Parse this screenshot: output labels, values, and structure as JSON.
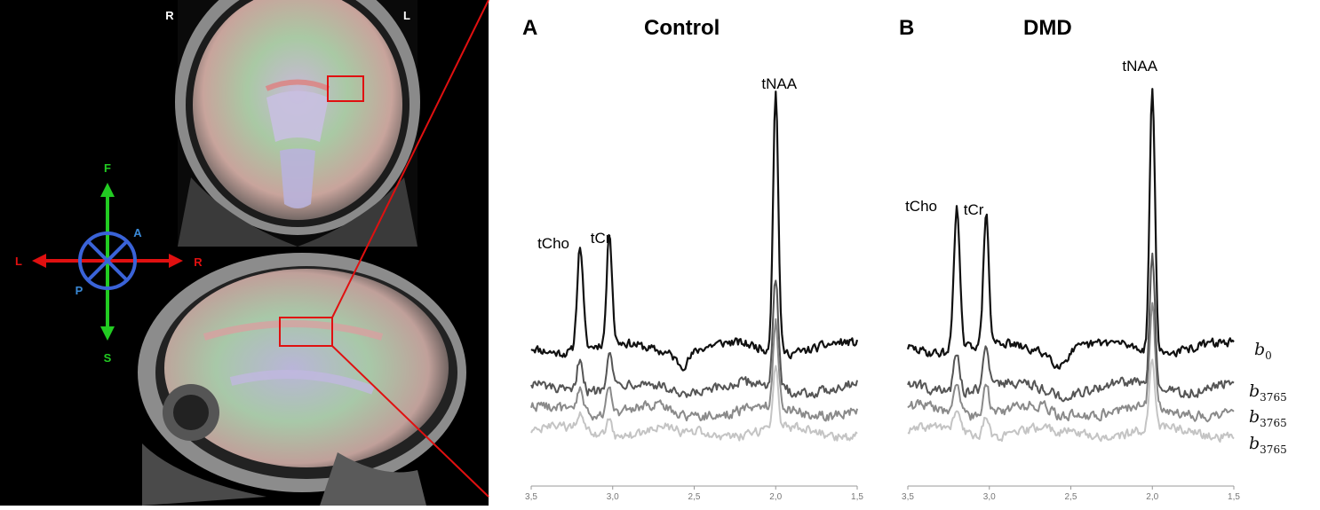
{
  "mri": {
    "coronal": {
      "right_label": "R",
      "left_label": "L"
    },
    "compass": {
      "up": "F",
      "down": "S",
      "left": "L",
      "right": "R",
      "anterior": "A",
      "posterior": "P"
    }
  },
  "panels": [
    {
      "letter": "A",
      "title": "Control"
    },
    {
      "letter": "B",
      "title": "DMD"
    }
  ],
  "chart_data": [
    {
      "type": "line",
      "panel": "A",
      "title": "Control",
      "xlabel": "",
      "ylabel": "",
      "xlim": [
        3.5,
        1.5
      ],
      "x_ticks": [
        "3,5",
        "3,0",
        "2,5",
        "2,0",
        "1,5"
      ],
      "peaks": [
        {
          "label": "tCho",
          "ppm": 3.2
        },
        {
          "label": "tCr",
          "ppm": 3.02
        },
        {
          "label": "tNAA",
          "ppm": 2.0
        }
      ],
      "series": [
        {
          "label_main": "b",
          "label_sub": "0",
          "color": "#111111"
        },
        {
          "label_main": "b",
          "label_sub": "3765",
          "color": "#555555"
        },
        {
          "label_main": "b",
          "label_sub": "3765",
          "color": "#8a8a8a"
        },
        {
          "label_main": "b",
          "label_sub": "3765",
          "color": "#c4c4c4"
        }
      ]
    },
    {
      "type": "line",
      "panel": "B",
      "title": "DMD",
      "xlabel": "",
      "ylabel": "",
      "xlim": [
        3.5,
        1.5
      ],
      "x_ticks": [
        "3,5",
        "3,0",
        "2,5",
        "2,0",
        "1,5"
      ],
      "peaks": [
        {
          "label": "tCho",
          "ppm": 3.2
        },
        {
          "label": "tCr",
          "ppm": 3.02
        },
        {
          "label": "tNAA",
          "ppm": 2.0
        }
      ],
      "series": [
        {
          "label_main": "b",
          "label_sub": "0",
          "color": "#111111"
        },
        {
          "label_main": "b",
          "label_sub": "3765",
          "color": "#555555"
        },
        {
          "label_main": "b",
          "label_sub": "3765",
          "color": "#8a8a8a"
        },
        {
          "label_main": "b",
          "label_sub": "3765",
          "color": "#c4c4c4"
        }
      ]
    }
  ]
}
